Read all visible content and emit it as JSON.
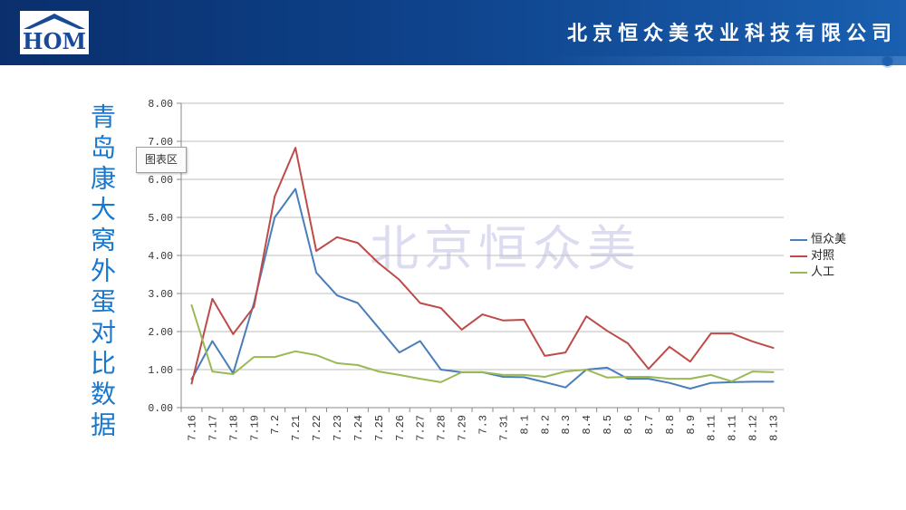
{
  "header": {
    "logo_text": "HOM",
    "company_name": "北京恒众美农业科技有限公司"
  },
  "slide": {
    "title": "青岛康大窝外蛋对比数据",
    "watermark": "北京恒众美",
    "tooltip": "图表区"
  },
  "colors": {
    "header_dark": "#0a2f6c",
    "header_light": "#1a5fb0",
    "title_blue": "#1877cf"
  },
  "icons": {
    "logo": "house-roof-icon"
  },
  "chart_data": {
    "type": "line",
    "categories": [
      "7.16",
      "7.17",
      "7.18",
      "7.19",
      "7.2",
      "7.21",
      "7.22",
      "7.23",
      "7.24",
      "7.25",
      "7.26",
      "7.27",
      "7.28",
      "7.29",
      "7.3",
      "7.31",
      "8.1",
      "8.2",
      "8.3",
      "8.4",
      "8.5",
      "8.6",
      "8.7",
      "8.8",
      "8.9",
      "8.11",
      "8.11",
      "8.12",
      "8.13"
    ],
    "series": [
      {
        "name": "恒众美",
        "color": "#4a7ebb",
        "values": [
          0.75,
          1.75,
          0.9,
          2.75,
          5.0,
          5.75,
          3.55,
          2.95,
          2.75,
          2.1,
          1.45,
          1.75,
          1.0,
          0.93,
          0.93,
          0.81,
          0.8,
          0.67,
          0.53,
          1.0,
          1.05,
          0.76,
          0.76,
          0.65,
          0.5,
          0.65,
          0.67,
          0.68,
          0.68
        ]
      },
      {
        "name": "对照",
        "color": "#be4b48",
        "values": [
          0.63,
          2.86,
          1.93,
          2.65,
          5.55,
          6.83,
          4.12,
          4.48,
          4.33,
          3.8,
          3.36,
          2.75,
          2.62,
          2.05,
          2.45,
          2.29,
          2.31,
          1.36,
          1.45,
          2.4,
          2.02,
          1.69,
          1.02,
          1.6,
          1.21,
          1.95,
          1.95,
          1.74,
          1.57
        ]
      },
      {
        "name": "人工",
        "color": "#98b954",
        "values": [
          2.69,
          0.95,
          0.88,
          1.33,
          1.33,
          1.48,
          1.38,
          1.17,
          1.12,
          0.95,
          0.86,
          0.76,
          0.67,
          0.93,
          0.93,
          0.86,
          0.86,
          0.81,
          0.95,
          1.0,
          0.79,
          0.81,
          0.81,
          0.76,
          0.76,
          0.86,
          0.69,
          0.95,
          0.93
        ]
      }
    ],
    "ylim": [
      0,
      8
    ],
    "yticks": [
      "0.00",
      "1.00",
      "2.00",
      "3.00",
      "4.00",
      "5.00",
      "6.00",
      "7.00",
      "8.00"
    ],
    "grid": true,
    "legend_position": "right"
  }
}
